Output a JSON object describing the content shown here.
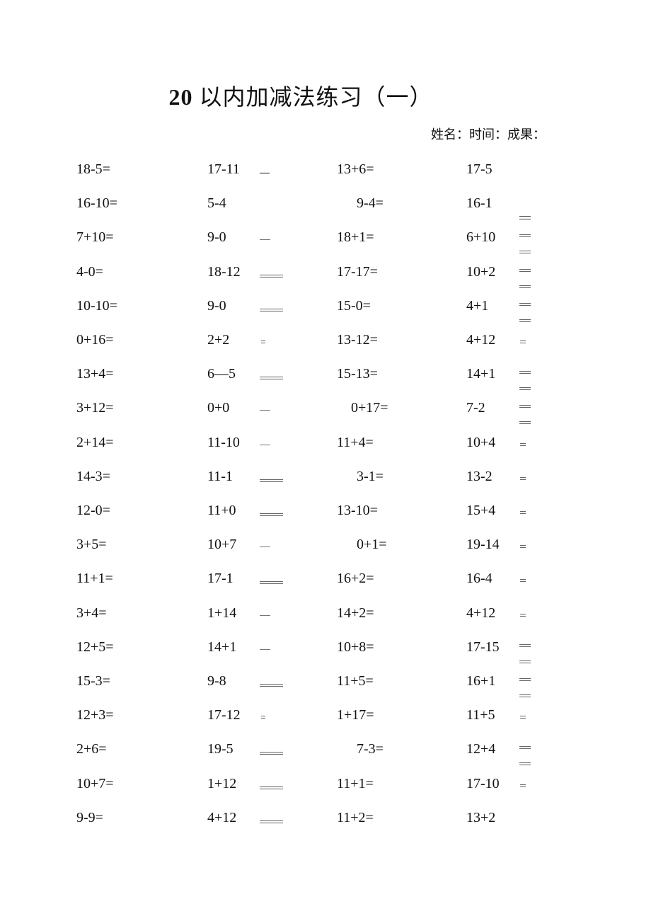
{
  "title": {
    "number": "20",
    "text": "以内加减法练习（一）"
  },
  "meta": "姓名：时间：成果：",
  "columns": [
    [
      "18-5=",
      "16-10=",
      "7+10=",
      "4-0=",
      "10-10=",
      "0+16=",
      "13+4=",
      "3+12=",
      "2+14=",
      "14-3=",
      "12-0=",
      "3+5=",
      "11+1=",
      "3+4=",
      "12+5=",
      "15-3=",
      "12+3=",
      "2+6=",
      "10+7=",
      "9-9="
    ],
    [
      "17-11",
      "5-4",
      "9-0",
      "18-12",
      "9-0",
      "2+2",
      "6—5",
      "0+0",
      "11-10",
      "11-1",
      "11+0",
      "10+7",
      "17-1",
      "1+14",
      "14+1",
      "9-8",
      "17-12",
      "19-5",
      "1+12",
      "4+12"
    ],
    [
      "13+6=",
      "9-4=",
      "18+1=",
      "17-17=",
      "15-0=",
      "13-12=",
      "15-13=",
      "0+17=",
      "11+4=",
      "3-1=",
      "13-10=",
      "0+1=",
      "16+2=",
      "14+2=",
      "10+8=",
      "11+5=",
      "1+17=",
      "7-3=",
      "11+1=",
      "11+2="
    ],
    [
      "17-5",
      "16-1",
      "6+10",
      "10+2",
      "4+1",
      "4+12",
      "14+1",
      "7-2",
      "10+4",
      "13-2",
      "15+4",
      "19-14",
      "16-4",
      "4+12",
      "17-15",
      "16+1",
      "11+5",
      "12+4",
      "17-10",
      "13+2"
    ]
  ],
  "col2_marks": [
    "_",
    "",
    "-",
    "==",
    "==",
    "=",
    "==",
    "-",
    "-",
    "==",
    "==",
    "-",
    "==",
    "-",
    "-",
    "==",
    "=",
    "==",
    "==",
    "=="
  ],
  "col4_marks": [
    "",
    "stack1",
    "stack",
    "stack",
    "stack",
    "=",
    "stack",
    "stack",
    "=",
    "=",
    "=",
    "=",
    "=",
    "=",
    "stack",
    "stack",
    "=",
    "stack",
    "=",
    ""
  ]
}
